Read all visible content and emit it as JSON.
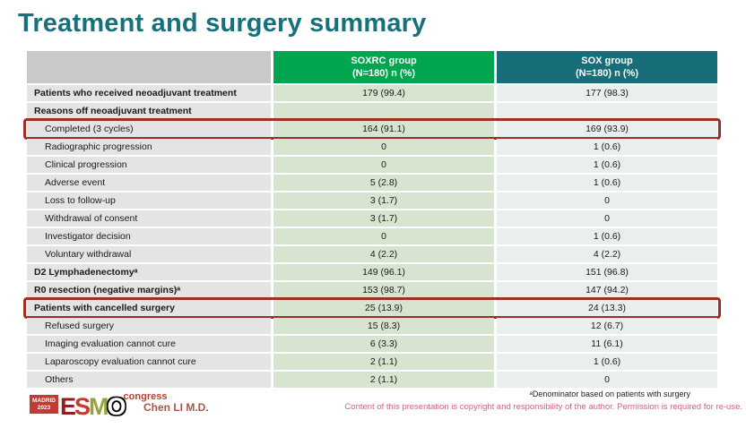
{
  "slide": {
    "title": "Treatment and surgery summary",
    "author": "Chen LI M.D.",
    "footnote": "ᵃDenominator based on patients with surgery",
    "copyright": "Content of this presentation is copyright and responsibility of the author. Permission is required for re-use."
  },
  "logo": {
    "location": "MADRID",
    "year": "2023",
    "letters": [
      "E",
      "S",
      "M",
      "O"
    ],
    "congress": "congress"
  },
  "table": {
    "header": {
      "label_col": "",
      "soxrc_line1": "SOXRC group",
      "soxrc_line2": "(N=180) n (%)",
      "sox_line1": "SOX group",
      "sox_line2": "(N=180) n (%)"
    },
    "rows": [
      {
        "label": "Patients who received neoadjuvant treatment",
        "soxrc": "179 (99.4)",
        "sox": "177 (98.3)",
        "bold": true,
        "indent": false,
        "box": false
      },
      {
        "label": "Reasons off neoadjuvant treatment",
        "soxrc": "",
        "sox": "",
        "bold": true,
        "indent": false,
        "box": false
      },
      {
        "label": "Completed (3 cycles)",
        "soxrc": "164 (91.1)",
        "sox": "169 (93.9)",
        "bold": false,
        "indent": true,
        "box": true
      },
      {
        "label": "Radiographic progression",
        "soxrc": "0",
        "sox": "1 (0.6)",
        "bold": false,
        "indent": true,
        "box": false
      },
      {
        "label": "Clinical progression",
        "soxrc": "0",
        "sox": "1 (0.6)",
        "bold": false,
        "indent": true,
        "box": false
      },
      {
        "label": "Adverse event",
        "soxrc": "5 (2.8)",
        "sox": "1 (0.6)",
        "bold": false,
        "indent": true,
        "box": false
      },
      {
        "label": "Loss to follow-up",
        "soxrc": "3 (1.7)",
        "sox": "0",
        "bold": false,
        "indent": true,
        "box": false
      },
      {
        "label": "Withdrawal of consent",
        "soxrc": "3 (1.7)",
        "sox": "0",
        "bold": false,
        "indent": true,
        "box": false
      },
      {
        "label": "Investigator decision",
        "soxrc": "0",
        "sox": "1 (0.6)",
        "bold": false,
        "indent": true,
        "box": false
      },
      {
        "label": "Voluntary withdrawal",
        "soxrc": "4 (2.2)",
        "sox": "4 (2.2)",
        "bold": false,
        "indent": true,
        "box": false
      },
      {
        "label": "D2 Lymphadenectomyᵃ",
        "soxrc": "149 (96.1)",
        "sox": "151 (96.8)",
        "bold": true,
        "indent": false,
        "box": false
      },
      {
        "label": "R0 resection (negative margins)ᵃ",
        "soxrc": "153 (98.7)",
        "sox": "147 (94.2)",
        "bold": true,
        "indent": false,
        "box": false
      },
      {
        "label": "Patients with cancelled surgery",
        "soxrc": "25 (13.9)",
        "sox": "24 (13.3)",
        "bold": true,
        "indent": false,
        "box": true
      },
      {
        "label": "Refused surgery",
        "soxrc": "15 (8.3)",
        "sox": "12 (6.7)",
        "bold": false,
        "indent": true,
        "box": false
      },
      {
        "label": "Imaging evaluation cannot cure",
        "soxrc": "6 (3.3)",
        "sox": "11 (6.1)",
        "bold": false,
        "indent": true,
        "box": false
      },
      {
        "label": "Laparoscopy evaluation cannot cure",
        "soxrc": "2 (1.1)",
        "sox": "1 (0.6)",
        "bold": false,
        "indent": true,
        "box": false
      },
      {
        "label": "Others",
        "soxrc": "2 (1.1)",
        "sox": "0",
        "bold": false,
        "indent": true,
        "box": false
      }
    ]
  },
  "colors": {
    "title_teal": "#17717a",
    "accent_green": "#00a64f",
    "accent_teal": "#186e78",
    "header_gray": "#c9c9c9",
    "label_cell": "#e4e4e4",
    "soxrc_cell": "#d7e5d0",
    "sox_cell": "#e9efee",
    "highlight_red": "#9e2f26",
    "esmo_red": "#c23b31",
    "esmo_dark_red": "#8f1d22",
    "esmo_olive": "#97a23b",
    "author_red": "#a8554c",
    "copyright_pink": "#c4687f"
  }
}
